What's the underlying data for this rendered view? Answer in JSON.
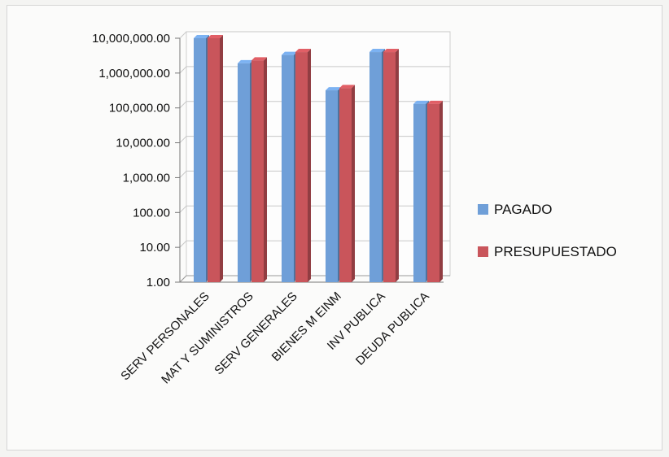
{
  "chart_data": {
    "type": "bar",
    "yscale": "log",
    "ylim": [
      1,
      10000000
    ],
    "yticks": [
      {
        "value": 10000000,
        "label": "10,000,000.00"
      },
      {
        "value": 1000000,
        "label": "1,000,000.00"
      },
      {
        "value": 100000,
        "label": "100,000.00"
      },
      {
        "value": 10000,
        "label": "10,000.00"
      },
      {
        "value": 1000,
        "label": "1,000.00"
      },
      {
        "value": 100,
        "label": "100.00"
      },
      {
        "value": 10,
        "label": "10.00"
      },
      {
        "value": 1,
        "label": "1.00"
      }
    ],
    "categories": [
      "SERV PERSONALES",
      "MAT Y SUMINISTROS",
      "SERV GENERALES",
      "BIENES  M EINM",
      "INV PUBLICA",
      "DEUDA PUBLICA"
    ],
    "series": [
      {
        "name": "PAGADO",
        "color": "#6f9fd8",
        "values": [
          10000000,
          1900000,
          3300000,
          320000,
          4000000,
          130000
        ]
      },
      {
        "name": "PRESUPUESTADO",
        "color": "#c9555b",
        "values": [
          10000000,
          2300000,
          4000000,
          370000,
          4000000,
          130000
        ]
      }
    ],
    "legend_position": "right",
    "grid": true
  }
}
